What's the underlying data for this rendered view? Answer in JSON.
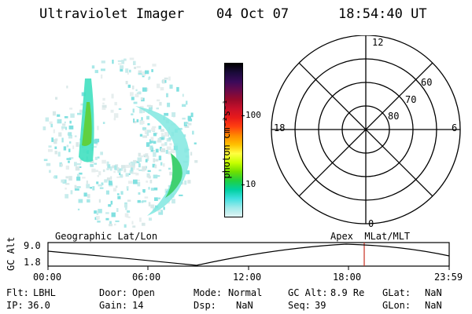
{
  "header": {
    "instrument": "Ultraviolet Imager",
    "date": "04 Oct 07",
    "time": "18:54:40 UT"
  },
  "colorbar": {
    "unit_label": "photon cm⁻²s⁻¹",
    "tick_100": "100",
    "tick_10": "10",
    "colors": [
      "#000000",
      "#1a0a3a",
      "#3a0a5a",
      "#6a0a4a",
      "#9a0a2a",
      "#c8102a",
      "#e81a1a",
      "#ff4010",
      "#ff8a00",
      "#ffc000",
      "#ffff40",
      "#c8ff00",
      "#70e000",
      "#20d040",
      "#00d0a0",
      "#40e0e0",
      "#a0eaea",
      "#e0f4f4"
    ]
  },
  "polar": {
    "mlt_12": "12",
    "mlt_18": "18",
    "mlt_6": "6",
    "mlt_0": "0",
    "lat_60": "60",
    "lat_70": "70",
    "lat_80": "80"
  },
  "timeline": {
    "left_caption": "Geographic Lat/Lon",
    "right_caption": "Apex  MLat/MLT",
    "axis_title": "GC Alt",
    "ymax": "9.0",
    "ymin": "1.8",
    "ticks": [
      "00:00",
      "06:00",
      "12:00",
      "18:00",
      "23:59"
    ],
    "marker_color": "#c83020"
  },
  "footer": {
    "flt_label": "Flt:",
    "flt_value": "LBHL",
    "ip_label": "IP:",
    "ip_value": "36.0",
    "door_label": "Door:",
    "door_value": "Open",
    "gain_label": "Gain:",
    "gain_value": "14",
    "mode_label": "Mode:",
    "mode_value": "Normal",
    "dsp_label": "Dsp:",
    "dsp_value": "NaN",
    "gcalt_label": "GC Alt:",
    "gcalt_value": "8.9 Re",
    "seq_label": "Seq:",
    "seq_value": "39",
    "glat_label": "GLat:",
    "glat_value": "NaN",
    "glon_label": "GLon:",
    "glon_value": "NaN"
  }
}
